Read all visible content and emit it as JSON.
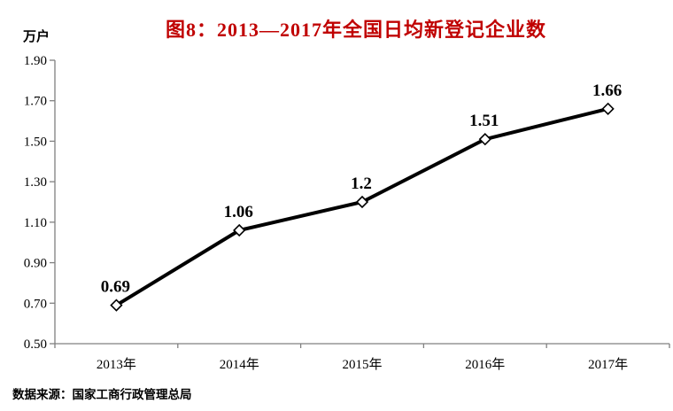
{
  "figure": {
    "title": "图8：2013—2017年全国日均新登记企业数",
    "title_color": "#C00000",
    "unit_label": "万户",
    "source_note": "数据来源：国家工商行政管理总局"
  },
  "chart_data": {
    "type": "line",
    "title": "图8：2013—2017年全国日均新登记企业数",
    "xlabel": "",
    "ylabel": "万户",
    "categories": [
      "2013年",
      "2014年",
      "2015年",
      "2016年",
      "2017年"
    ],
    "values": [
      0.69,
      1.06,
      1.2,
      1.51,
      1.66
    ],
    "point_labels": [
      "0.69",
      "1.06",
      "1.2",
      "1.51",
      "1.66"
    ],
    "ytick_labels": [
      "0.50",
      "0.70",
      "0.90",
      "1.10",
      "1.30",
      "1.50",
      "1.70",
      "1.90"
    ],
    "ytick_values": [
      0.5,
      0.7,
      0.9,
      1.1,
      1.3,
      1.5,
      1.7,
      1.9
    ],
    "ylim": [
      0.5,
      1.9
    ],
    "grid": false,
    "legend": "none",
    "line_color": "#000000",
    "marker_style": "white-diamond",
    "marker_fill": "#ffffff",
    "marker_stroke": "#000000",
    "axis_color": "#808080",
    "text_color": "#000000"
  }
}
